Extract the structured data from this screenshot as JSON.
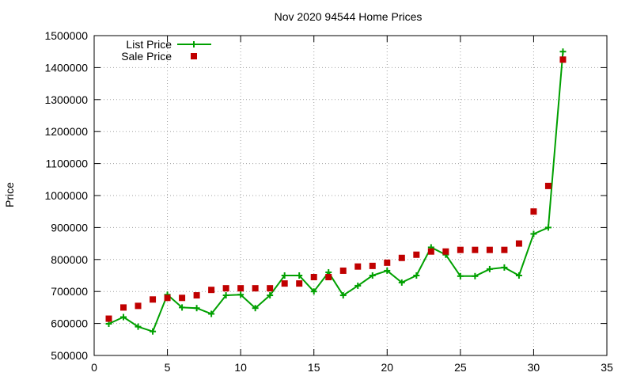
{
  "chart_data": {
    "type": "line",
    "title": "Nov 2020 94544 Home Prices",
    "xlabel": "",
    "ylabel": "Price",
    "xlim": [
      0,
      35
    ],
    "ylim": [
      500000,
      1500000
    ],
    "xticks": [
      0,
      5,
      10,
      15,
      20,
      25,
      30,
      35
    ],
    "yticks": [
      500000,
      600000,
      700000,
      800000,
      900000,
      1000000,
      1100000,
      1200000,
      1300000,
      1400000,
      1500000
    ],
    "grid": true,
    "legend_position": "top-left",
    "x": [
      1,
      2,
      3,
      4,
      5,
      6,
      7,
      8,
      9,
      10,
      11,
      12,
      13,
      14,
      15,
      16,
      17,
      18,
      19,
      20,
      21,
      22,
      23,
      24,
      25,
      26,
      27,
      28,
      29,
      30,
      31,
      32
    ],
    "series": [
      {
        "name": "List Price",
        "style": "line-with-plus",
        "color": "#00a000",
        "values": [
          599000,
          620000,
          590000,
          575000,
          690000,
          650000,
          648000,
          630000,
          688000,
          690000,
          648000,
          688000,
          750000,
          750000,
          700000,
          760000,
          688000,
          718000,
          750000,
          765000,
          728000,
          750000,
          838000,
          815000,
          748000,
          748000,
          770000,
          775000,
          750000,
          880000,
          900000,
          1450000
        ]
      },
      {
        "name": "Sale Price",
        "style": "square-markers",
        "color": "#c00000",
        "values": [
          615000,
          650000,
          655000,
          675000,
          680000,
          680000,
          688000,
          705000,
          710000,
          710000,
          710000,
          710000,
          725000,
          725000,
          745000,
          745000,
          765000,
          778000,
          780000,
          790000,
          805000,
          815000,
          825000,
          825000,
          830000,
          830000,
          830000,
          830000,
          850000,
          950000,
          1030000,
          1425000
        ]
      }
    ]
  }
}
